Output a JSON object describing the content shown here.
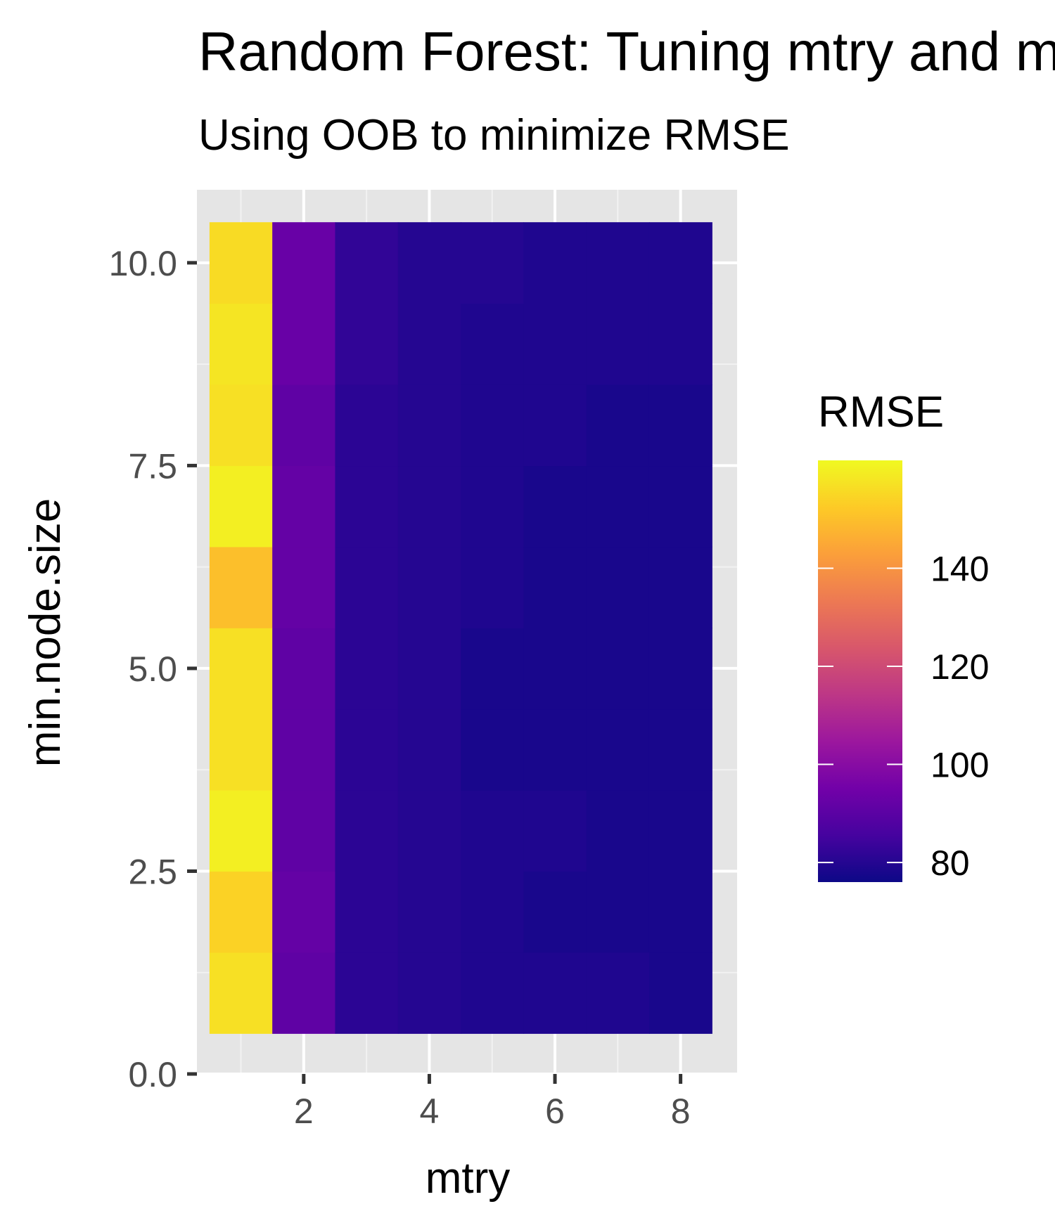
{
  "chart_data": {
    "type": "heatmap",
    "title": "Random Forest: Tuning mtry and min.node.size",
    "subtitle": "Using OOB to minimize RMSE",
    "xlabel": "mtry",
    "ylabel": "min.node.size",
    "x": [
      1,
      2,
      3,
      4,
      5,
      6,
      7,
      8
    ],
    "y": [
      1,
      2,
      3,
      4,
      5,
      6,
      7,
      8,
      9,
      10
    ],
    "xlim": [
      0.3,
      8.9
    ],
    "ylim": [
      0,
      10.9
    ],
    "x_ticks": [
      2,
      4,
      6,
      8
    ],
    "x_tick_labels": [
      "2",
      "4",
      "6",
      "8"
    ],
    "y_ticks": [
      0,
      2.5,
      5,
      7.5,
      10
    ],
    "y_tick_labels": [
      "0.0",
      "2.5",
      "5.0",
      "7.5",
      "10.0"
    ],
    "grid": true,
    "values": [
      [
        157,
        91,
        81,
        80,
        79,
        79,
        79,
        78
      ],
      [
        154,
        92,
        81,
        80,
        79,
        78,
        78,
        78
      ],
      [
        160,
        91,
        81,
        80,
        79,
        79,
        78,
        78
      ],
      [
        157,
        91,
        81,
        80,
        78,
        78,
        78,
        78
      ],
      [
        157,
        91,
        81,
        80,
        78,
        78,
        78,
        78
      ],
      [
        150,
        92,
        81,
        80,
        79,
        78,
        78,
        78
      ],
      [
        160,
        92,
        81,
        80,
        79,
        78,
        78,
        78
      ],
      [
        157,
        91,
        81,
        80,
        79,
        79,
        78,
        78
      ],
      [
        158,
        93,
        82,
        80,
        79,
        79,
        79,
        79
      ],
      [
        156,
        93,
        82,
        80,
        80,
        79,
        79,
        79
      ]
    ],
    "legend": {
      "title": "RMSE",
      "position": "right",
      "min": 76,
      "max": 162,
      "breaks": [
        80,
        100,
        120,
        140
      ],
      "break_labels": [
        "80",
        "100",
        "120",
        "140"
      ],
      "colormap": "plasma"
    }
  },
  "colors": {
    "panel_background": "#e5e5e5",
    "grid_major": "#ffffff",
    "grid_minor": "#f2f2f2",
    "tick_mark": "#333333",
    "plasma": [
      "#0d0887",
      "#46039f",
      "#7201a8",
      "#9c179e",
      "#bd3786",
      "#d8576b",
      "#ed7953",
      "#fb9f3a",
      "#fdca26",
      "#f0f921"
    ]
  }
}
